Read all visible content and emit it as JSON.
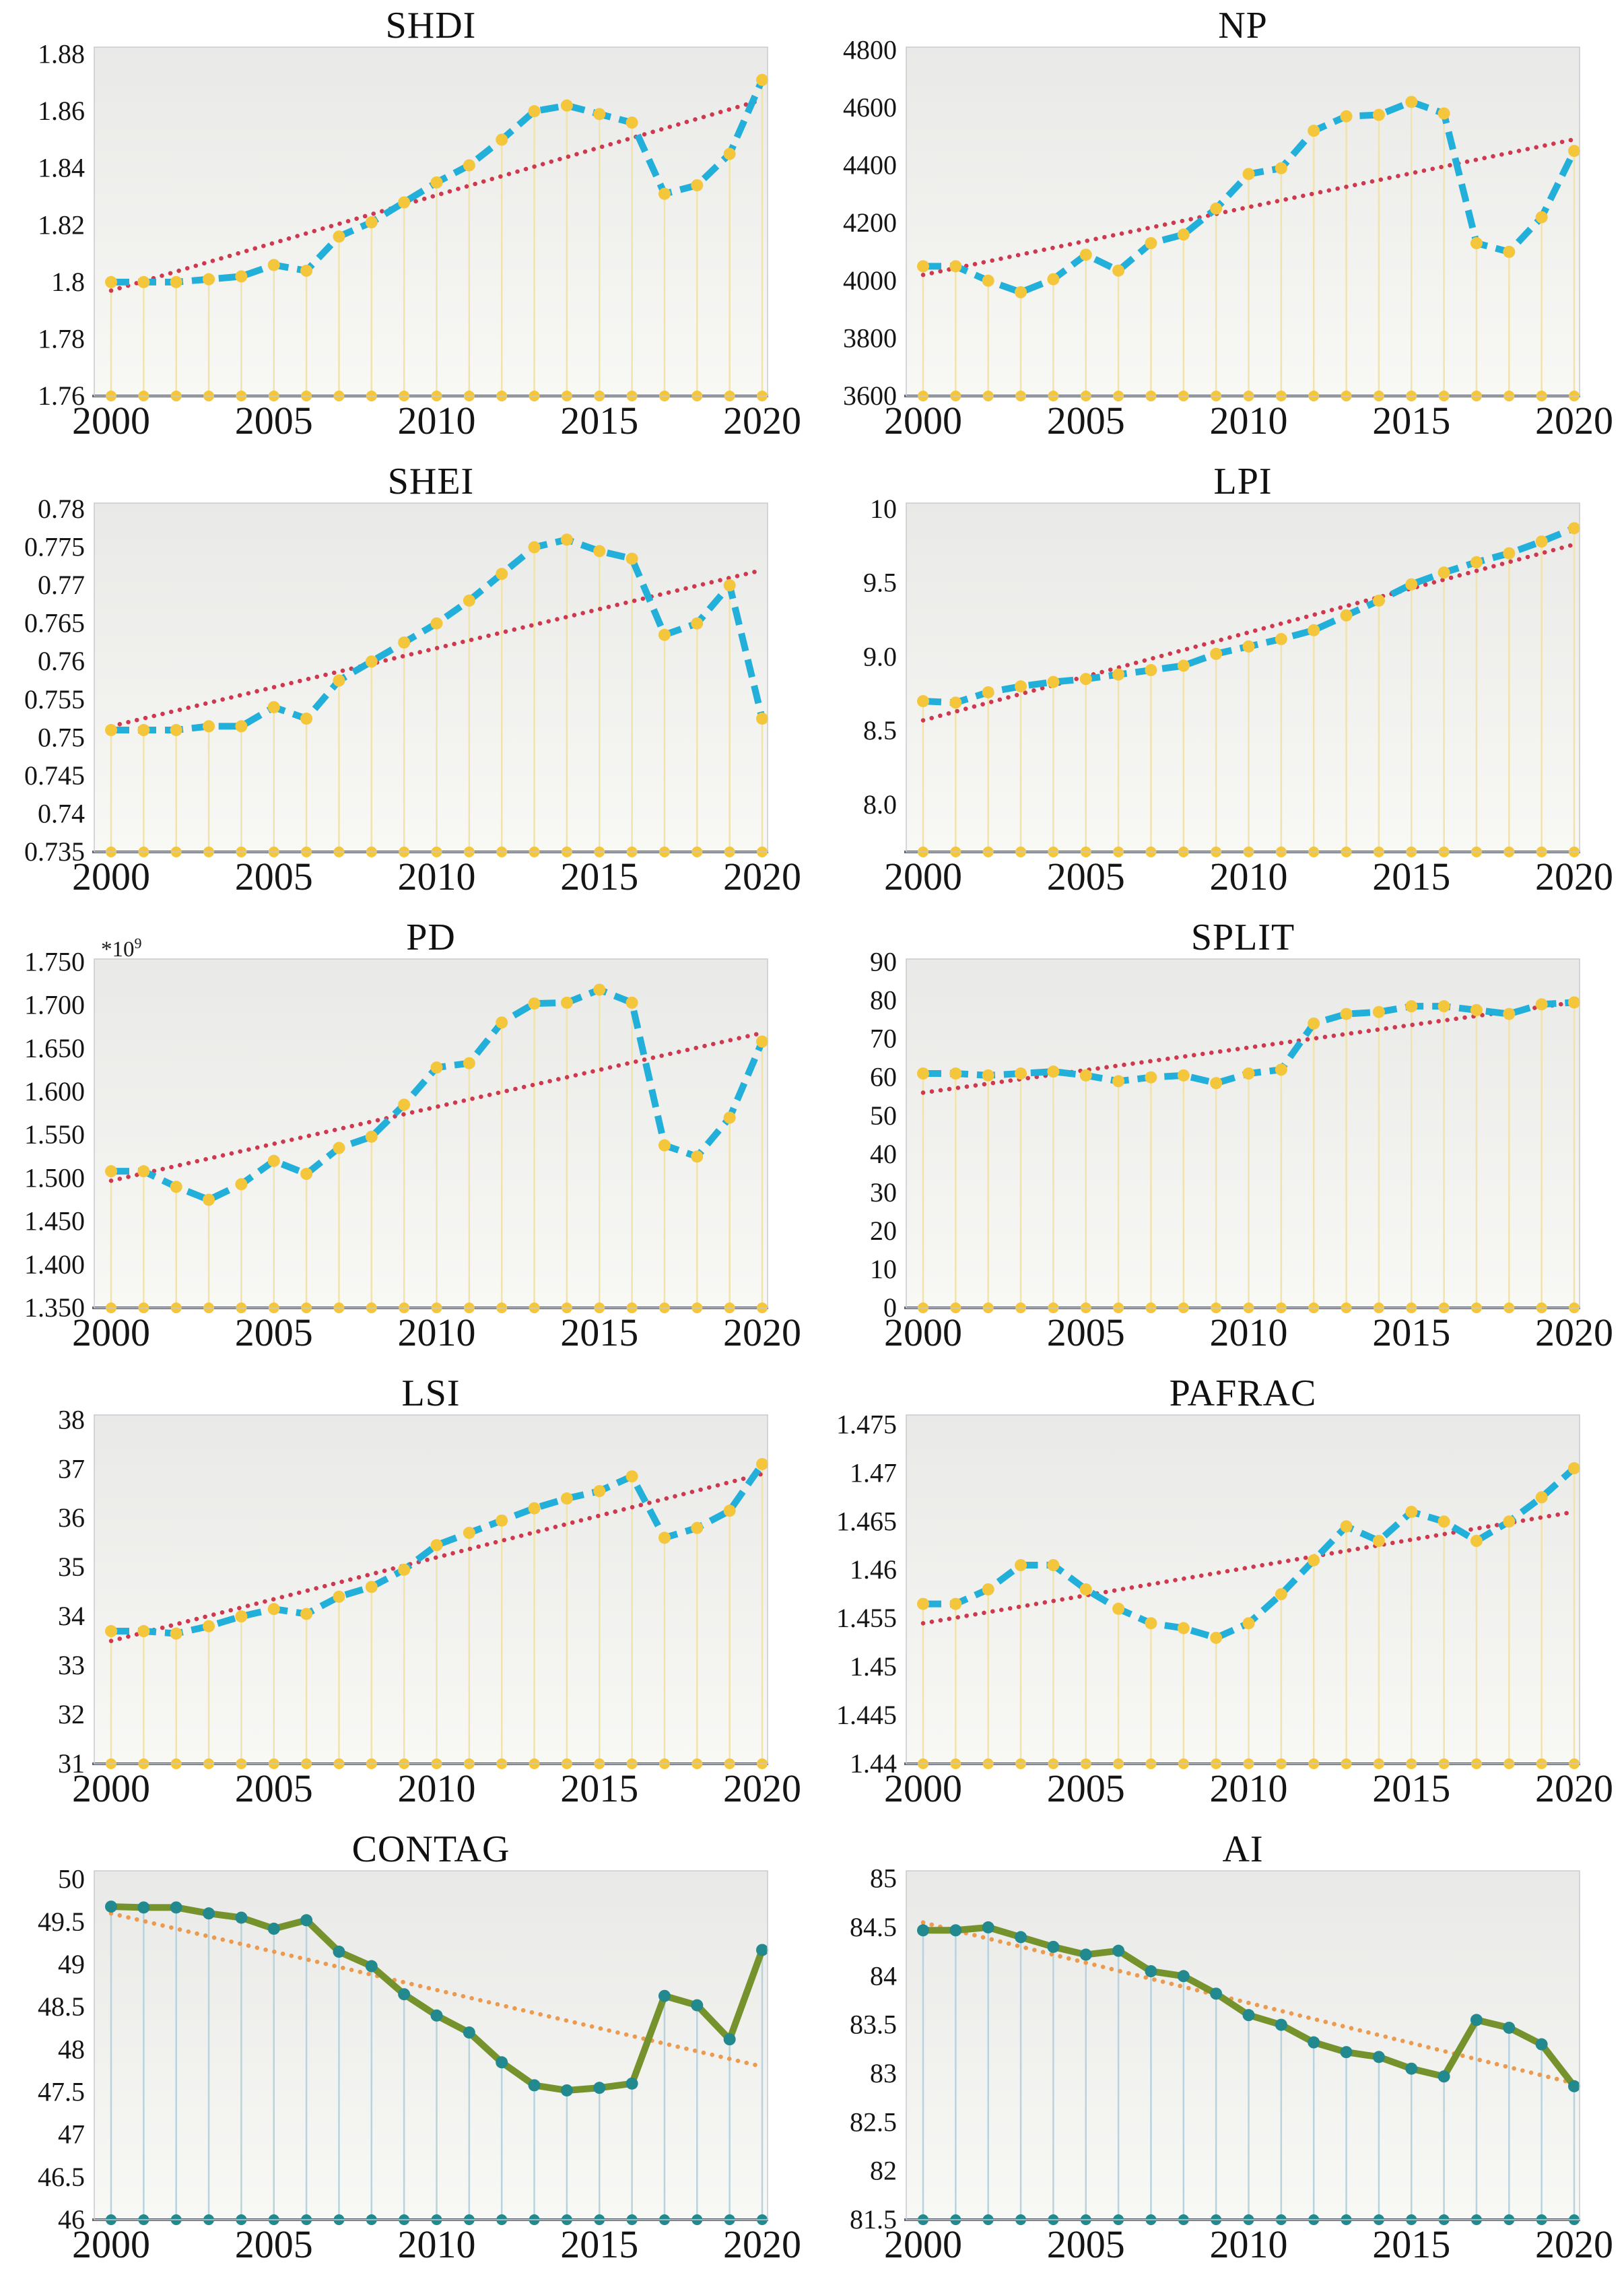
{
  "figure": {
    "background": "#ffffff",
    "description_titles": [
      "SHDI",
      "NP",
      "SHEI",
      "LPI",
      "PD",
      "SPLIT",
      "LSI",
      "PAFRAC",
      "CONTAG",
      "AI"
    ]
  },
  "palettes": {
    "cyan": {
      "line": "#22b0da",
      "line_dash": "27 13",
      "marker": "#f4c63c",
      "stem": "#f1e3ae",
      "trend": "#cf3950"
    },
    "olive": {
      "line": "#75922c",
      "line_dash": "",
      "marker": "#22898f",
      "stem": "#b9d3de",
      "trend": "#ec9a4d"
    }
  },
  "axis_style": {
    "frame": "#c8cacd",
    "baseline": "#5c6370",
    "text": "#151515",
    "bg_top": "#e9e9e7",
    "bg_bottom": "#f8f8f5"
  },
  "chart_data": [
    {
      "id": "shdi",
      "type": "line",
      "title": "SHDI",
      "palette": "cyan",
      "x": [
        2000,
        2001,
        2002,
        2003,
        2004,
        2005,
        2006,
        2007,
        2008,
        2009,
        2010,
        2011,
        2012,
        2013,
        2014,
        2015,
        2016,
        2017,
        2018,
        2019,
        2020
      ],
      "y": [
        1.8,
        1.8,
        1.8,
        1.801,
        1.802,
        1.806,
        1.804,
        1.816,
        1.821,
        1.828,
        1.835,
        1.841,
        1.85,
        1.86,
        1.862,
        1.859,
        1.856,
        1.831,
        1.834,
        1.845,
        1.871
      ],
      "trend": [
        1.797,
        1.864
      ],
      "ylim": [
        1.76,
        1.8825
      ],
      "yticks": {
        "values": [
          1.76,
          1.78,
          1.8,
          1.82,
          1.84,
          1.86,
          1.88
        ],
        "labels": [
          "1.76",
          "1.78",
          "1.8",
          "1.82",
          "1.84",
          "1.86",
          "1.88"
        ]
      },
      "xticks": {
        "values": [
          2000,
          2005,
          2010,
          2015,
          2020
        ],
        "labels": [
          "2000",
          "2005",
          "2010",
          "2015",
          "2020"
        ]
      }
    },
    {
      "id": "np",
      "type": "line",
      "title": "NP",
      "palette": "cyan",
      "x": [
        2000,
        2001,
        2002,
        2003,
        2004,
        2005,
        2006,
        2007,
        2008,
        2009,
        2010,
        2011,
        2012,
        2013,
        2014,
        2015,
        2016,
        2017,
        2018,
        2019,
        2020
      ],
      "y": [
        4050,
        4050,
        4000,
        3960,
        4005,
        4090,
        4035,
        4130,
        4160,
        4250,
        4370,
        4390,
        4520,
        4570,
        4575,
        4620,
        4580,
        4130,
        4100,
        4220,
        4450
      ],
      "trend": [
        4020,
        4490
      ],
      "ylim": [
        3600,
        4810
      ],
      "yticks": {
        "values": [
          3600,
          3800,
          4000,
          4200,
          4400,
          4600,
          4800
        ],
        "labels": [
          "3600",
          "3800",
          "4000",
          "4200",
          "4400",
          "4600",
          "4800"
        ]
      },
      "xticks": {
        "values": [
          2000,
          2005,
          2010,
          2015,
          2020
        ],
        "labels": [
          "2000",
          "2005",
          "2010",
          "2015",
          "2020"
        ]
      }
    },
    {
      "id": "shei",
      "type": "line",
      "title": "SHEI",
      "palette": "cyan",
      "x": [
        2000,
        2001,
        2002,
        2003,
        2004,
        2005,
        2006,
        2007,
        2008,
        2009,
        2010,
        2011,
        2012,
        2013,
        2014,
        2015,
        2016,
        2017,
        2018,
        2019,
        2020
      ],
      "y": [
        0.751,
        0.751,
        0.751,
        0.7515,
        0.7515,
        0.754,
        0.7525,
        0.7575,
        0.76,
        0.7625,
        0.765,
        0.768,
        0.7715,
        0.775,
        0.776,
        0.7745,
        0.7735,
        0.7635,
        0.765,
        0.77,
        0.7525
      ],
      "trend": [
        0.7515,
        0.772
      ],
      "ylim": [
        0.735,
        0.7808
      ],
      "yticks": {
        "values": [
          0.735,
          0.74,
          0.745,
          0.75,
          0.755,
          0.76,
          0.765,
          0.77,
          0.775,
          0.78
        ],
        "labels": [
          "0.735",
          "0.74",
          "0.745",
          "0.75",
          "0.755",
          "0.76",
          "0.765",
          "0.77",
          "0.775",
          "0.78"
        ]
      },
      "xticks": {
        "values": [
          2000,
          2005,
          2010,
          2015,
          2020
        ],
        "labels": [
          "2000",
          "2005",
          "2010",
          "2015",
          "2020"
        ]
      }
    },
    {
      "id": "lpi",
      "type": "line",
      "title": "LPI",
      "palette": "cyan",
      "x": [
        2000,
        2001,
        2002,
        2003,
        2004,
        2005,
        2006,
        2007,
        2008,
        2009,
        2010,
        2011,
        2012,
        2013,
        2014,
        2015,
        2016,
        2017,
        2018,
        2019,
        2020
      ],
      "y": [
        8.7,
        8.69,
        8.76,
        8.8,
        8.83,
        8.85,
        8.88,
        8.91,
        8.94,
        9.02,
        9.07,
        9.12,
        9.18,
        9.28,
        9.38,
        9.49,
        9.57,
        9.64,
        9.7,
        9.78,
        9.87
      ],
      "trend": [
        8.57,
        9.76
      ],
      "ylim": [
        7.68,
        10.04
      ],
      "yticks": {
        "values": [
          8.0,
          8.5,
          9.0,
          9.5,
          10
        ],
        "labels": [
          "8.0",
          "8.5",
          "9.0",
          "9.5",
          "10"
        ]
      },
      "xticks": {
        "values": [
          2000,
          2005,
          2010,
          2015,
          2020
        ],
        "labels": [
          "2000",
          "2005",
          "2010",
          "2015",
          "2020"
        ]
      }
    },
    {
      "id": "pd",
      "type": "line",
      "title": "PD",
      "palette": "cyan",
      "y_exponent": {
        "base": "*10",
        "sup": "9"
      },
      "x": [
        2000,
        2001,
        2002,
        2003,
        2004,
        2005,
        2006,
        2007,
        2008,
        2009,
        2010,
        2011,
        2012,
        2013,
        2014,
        2015,
        2016,
        2017,
        2018,
        2019,
        2020
      ],
      "y": [
        1.508,
        1.508,
        1.49,
        1.475,
        1.493,
        1.52,
        1.505,
        1.535,
        1.548,
        1.585,
        1.628,
        1.633,
        1.68,
        1.702,
        1.703,
        1.718,
        1.703,
        1.538,
        1.525,
        1.57,
        1.658
      ],
      "trend": [
        1.497,
        1.668
      ],
      "ylim": [
        1.35,
        1.7535
      ],
      "yticks": {
        "values": [
          1.35,
          1.4,
          1.45,
          1.5,
          1.55,
          1.6,
          1.65,
          1.7,
          1.75
        ],
        "labels": [
          "1.350",
          "1.400",
          "1.450",
          "1.500",
          "1.550",
          "1.600",
          "1.650",
          "1.700",
          "1.750"
        ]
      },
      "xticks": {
        "values": [
          2000,
          2005,
          2010,
          2015,
          2020
        ],
        "labels": [
          "2000",
          "2005",
          "2010",
          "2015",
          "2020"
        ]
      }
    },
    {
      "id": "split",
      "type": "line",
      "title": "SPLIT",
      "palette": "cyan",
      "x": [
        2000,
        2001,
        2002,
        2003,
        2004,
        2005,
        2006,
        2007,
        2008,
        2009,
        2010,
        2011,
        2012,
        2013,
        2014,
        2015,
        2016,
        2017,
        2018,
        2019,
        2020
      ],
      "y": [
        61,
        61,
        60.5,
        61,
        61.5,
        60.5,
        59,
        60,
        60.5,
        58.5,
        61,
        62,
        74,
        76.5,
        77,
        78.5,
        78.5,
        77.5,
        76.5,
        79,
        79.5
      ],
      "trend": [
        56,
        79.5
      ],
      "ylim": [
        0,
        90.8
      ],
      "yticks": {
        "values": [
          0,
          10,
          20,
          30,
          40,
          50,
          60,
          70,
          80,
          90
        ],
        "labels": [
          "0",
          "10",
          "20",
          "30",
          "40",
          "50",
          "60",
          "70",
          "80",
          "90"
        ]
      },
      "xticks": {
        "values": [
          2000,
          2005,
          2010,
          2015,
          2020
        ],
        "labels": [
          "2000",
          "2005",
          "2010",
          "2015",
          "2020"
        ]
      }
    },
    {
      "id": "lsi",
      "type": "line",
      "title": "LSI",
      "palette": "cyan",
      "x": [
        2000,
        2001,
        2002,
        2003,
        2004,
        2005,
        2006,
        2007,
        2008,
        2009,
        2010,
        2011,
        2012,
        2013,
        2014,
        2015,
        2016,
        2017,
        2018,
        2019,
        2020
      ],
      "y": [
        33.7,
        33.7,
        33.65,
        33.8,
        34,
        34.15,
        34.05,
        34.4,
        34.6,
        34.95,
        35.45,
        35.7,
        35.95,
        36.2,
        36.4,
        36.55,
        36.85,
        35.6,
        35.8,
        36.15,
        37.1
      ],
      "trend": [
        33.5,
        36.9
      ],
      "ylim": [
        31,
        38.1
      ],
      "yticks": {
        "values": [
          31,
          32,
          33,
          34,
          35,
          36,
          37,
          38
        ],
        "labels": [
          "31",
          "32",
          "33",
          "34",
          "35",
          "36",
          "37",
          "38"
        ]
      },
      "xticks": {
        "values": [
          2000,
          2005,
          2010,
          2015,
          2020
        ],
        "labels": [
          "2000",
          "2005",
          "2010",
          "2015",
          "2020"
        ]
      }
    },
    {
      "id": "pafrac",
      "type": "line",
      "title": "PAFRAC",
      "palette": "cyan",
      "x": [
        2000,
        2001,
        2002,
        2003,
        2004,
        2005,
        2006,
        2007,
        2008,
        2009,
        2010,
        2011,
        2012,
        2013,
        2014,
        2015,
        2016,
        2017,
        2018,
        2019,
        2020
      ],
      "y": [
        1.4565,
        1.4565,
        1.458,
        1.4605,
        1.4605,
        1.458,
        1.456,
        1.4545,
        1.454,
        1.453,
        1.4545,
        1.4575,
        1.461,
        1.4645,
        1.463,
        1.466,
        1.465,
        1.463,
        1.465,
        1.4675,
        1.4705
      ],
      "trend": [
        1.4545,
        1.466
      ],
      "ylim": [
        1.44,
        1.476
      ],
      "yticks": {
        "values": [
          1.44,
          1.445,
          1.45,
          1.455,
          1.46,
          1.465,
          1.47,
          1.475
        ],
        "labels": [
          "1.44",
          "1.445",
          "1.45",
          "1.455",
          "1.46",
          "1.465",
          "1.47",
          "1.475"
        ]
      },
      "xticks": {
        "values": [
          2000,
          2005,
          2010,
          2015,
          2020
        ],
        "labels": [
          "2000",
          "2005",
          "2010",
          "2015",
          "2020"
        ]
      }
    },
    {
      "id": "contag",
      "type": "line",
      "title": "CONTAG",
      "palette": "olive",
      "x": [
        2000,
        2001,
        2002,
        2003,
        2004,
        2005,
        2006,
        2007,
        2008,
        2009,
        2010,
        2011,
        2012,
        2013,
        2014,
        2015,
        2016,
        2017,
        2018,
        2019,
        2020
      ],
      "y": [
        49.68,
        49.67,
        49.67,
        49.6,
        49.55,
        49.42,
        49.52,
        49.15,
        48.98,
        48.65,
        48.4,
        48.2,
        47.85,
        47.58,
        47.52,
        47.55,
        47.6,
        48.63,
        48.52,
        48.12,
        49.17
      ],
      "trend": [
        49.6,
        47.8
      ],
      "ylim": [
        46,
        50.1
      ],
      "yticks": {
        "values": [
          46,
          46.5,
          47,
          47.5,
          48,
          48.5,
          49,
          49.5,
          50
        ],
        "labels": [
          "46",
          "46.5",
          "47",
          "47.5",
          "48",
          "48.5",
          "49",
          "49.5",
          "50"
        ]
      },
      "xticks": {
        "values": [
          2000,
          2005,
          2010,
          2015,
          2020
        ],
        "labels": [
          "2000",
          "2005",
          "2010",
          "2015",
          "2020"
        ]
      }
    },
    {
      "id": "ai",
      "type": "line",
      "title": "AI",
      "palette": "olive",
      "x": [
        2000,
        2001,
        2002,
        2003,
        2004,
        2005,
        2006,
        2007,
        2008,
        2009,
        2010,
        2011,
        2012,
        2013,
        2014,
        2015,
        2016,
        2017,
        2018,
        2019,
        2020
      ],
      "y": [
        84.47,
        84.47,
        84.5,
        84.4,
        84.3,
        84.22,
        84.26,
        84.05,
        84,
        83.82,
        83.6,
        83.5,
        83.32,
        83.22,
        83.17,
        83.05,
        82.97,
        83.55,
        83.47,
        83.3,
        82.87
      ],
      "trend": [
        84.55,
        82.9
      ],
      "ylim": [
        81.5,
        85.08
      ],
      "yticks": {
        "values": [
          81.5,
          82,
          82.5,
          83,
          83.5,
          84,
          84.5,
          85
        ],
        "labels": [
          "81.5",
          "82",
          "82.5",
          "83",
          "83.5",
          "84",
          "84.5",
          "85"
        ]
      },
      "xticks": {
        "values": [
          2000,
          2005,
          2010,
          2015,
          2020
        ],
        "labels": [
          "2000",
          "2005",
          "2010",
          "2015",
          "2020"
        ]
      }
    }
  ]
}
